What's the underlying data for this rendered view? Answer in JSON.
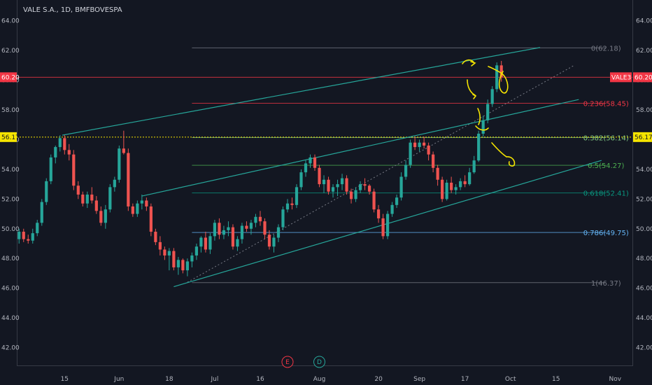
{
  "title": "VALE S.A., 1D, BMFBOVESPA",
  "chart_data": {
    "type": "candlestick",
    "title": "VALE S.A., 1D, BMFBOVESPA",
    "symbol_tag": "VALE3",
    "y_ticks": [
      42,
      44,
      46,
      48,
      50,
      52,
      54,
      56,
      58,
      60,
      62,
      64
    ],
    "y_tick_labels": [
      "42.00",
      "44.00",
      "46.00",
      "48.00",
      "50.00",
      "52.00",
      "54.00",
      "56.00",
      "58.00",
      "60.00",
      "62.00",
      "64.00"
    ],
    "ylim": [
      40.8,
      65.4
    ],
    "x_labels": [
      {
        "label": "15",
        "index": 10
      },
      {
        "label": "Jun",
        "index": 22
      },
      {
        "label": "18",
        "index": 33
      },
      {
        "label": "Jul",
        "index": 43
      },
      {
        "label": "16",
        "index": 53
      },
      {
        "label": "Aug",
        "index": 66
      },
      {
        "label": "20",
        "index": 79
      },
      {
        "label": "Sep",
        "index": 88
      },
      {
        "label": "17",
        "index": 98
      },
      {
        "label": "Oct",
        "index": 108
      },
      {
        "label": "15",
        "index": 118
      },
      {
        "label": "Nov",
        "index": 131
      }
    ],
    "xlim": [
      -0.5,
      134.8
    ],
    "last_price": "60.20",
    "crosshair_price": "56.17",
    "candles": [
      [
        49.3,
        50.0,
        49.0,
        49.8
      ],
      [
        49.8,
        50.0,
        49.1,
        49.3
      ],
      [
        49.3,
        49.6,
        49.0,
        49.2
      ],
      [
        49.2,
        50.0,
        49.0,
        49.7
      ],
      [
        49.7,
        50.6,
        49.5,
        50.4
      ],
      [
        50.4,
        52.0,
        50.2,
        51.8
      ],
      [
        51.8,
        53.4,
        51.6,
        53.2
      ],
      [
        53.2,
        55.0,
        53.0,
        54.8
      ],
      [
        54.8,
        55.6,
        54.4,
        55.5
      ],
      [
        55.5,
        56.3,
        55.2,
        56.1
      ],
      [
        56.1,
        56.3,
        55.0,
        55.3
      ],
      [
        55.3,
        55.7,
        54.6,
        55.0
      ],
      [
        55.0,
        55.3,
        52.6,
        52.9
      ],
      [
        52.9,
        53.2,
        52.0,
        52.3
      ],
      [
        52.3,
        52.5,
        51.5,
        51.7
      ],
      [
        51.7,
        52.5,
        51.4,
        52.3
      ],
      [
        52.3,
        52.8,
        51.7,
        51.9
      ],
      [
        51.9,
        52.2,
        51.0,
        51.2
      ],
      [
        51.2,
        51.5,
        50.2,
        50.4
      ],
      [
        50.4,
        51.6,
        50.0,
        51.3
      ],
      [
        51.3,
        53.0,
        51.1,
        52.8
      ],
      [
        52.8,
        53.5,
        52.5,
        53.3
      ],
      [
        53.3,
        55.6,
        53.1,
        55.4
      ],
      [
        55.4,
        56.6,
        55.0,
        55.1
      ],
      [
        55.1,
        55.4,
        51.2,
        51.5
      ],
      [
        51.5,
        51.7,
        50.8,
        51.0
      ],
      [
        51.0,
        51.9,
        50.8,
        51.7
      ],
      [
        51.7,
        52.3,
        51.3,
        51.9
      ],
      [
        51.9,
        52.1,
        51.2,
        51.5
      ],
      [
        51.5,
        51.7,
        49.5,
        49.8
      ],
      [
        49.8,
        50.0,
        48.9,
        49.1
      ],
      [
        49.1,
        49.5,
        48.2,
        48.6
      ],
      [
        48.6,
        48.8,
        47.9,
        48.2
      ],
      [
        48.2,
        48.7,
        47.2,
        48.5
      ],
      [
        48.5,
        48.7,
        47.2,
        47.4
      ],
      [
        47.4,
        48.1,
        46.9,
        47.9
      ],
      [
        47.9,
        48.0,
        47.0,
        47.2
      ],
      [
        47.2,
        48.0,
        46.8,
        47.8
      ],
      [
        47.8,
        48.4,
        47.4,
        48.2
      ],
      [
        48.2,
        49.0,
        47.9,
        48.8
      ],
      [
        48.8,
        49.5,
        48.4,
        49.4
      ],
      [
        49.4,
        49.8,
        48.4,
        48.6
      ],
      [
        48.6,
        49.7,
        48.3,
        49.5
      ],
      [
        49.5,
        50.6,
        49.2,
        50.4
      ],
      [
        50.4,
        50.7,
        49.3,
        49.6
      ],
      [
        49.6,
        50.2,
        49.3,
        49.9
      ],
      [
        49.9,
        50.5,
        49.5,
        50.1
      ],
      [
        50.1,
        50.3,
        48.6,
        48.8
      ],
      [
        48.8,
        49.5,
        48.5,
        49.3
      ],
      [
        49.3,
        50.4,
        49.0,
        50.2
      ],
      [
        50.2,
        50.5,
        49.8,
        50.0
      ],
      [
        50.0,
        50.6,
        49.6,
        50.4
      ],
      [
        50.4,
        51.0,
        50.1,
        50.8
      ],
      [
        50.8,
        51.2,
        50.2,
        50.5
      ],
      [
        50.5,
        50.7,
        49.3,
        49.6
      ],
      [
        49.6,
        49.9,
        48.6,
        48.8
      ],
      [
        48.8,
        49.6,
        48.4,
        49.4
      ],
      [
        49.4,
        50.3,
        49.1,
        50.1
      ],
      [
        50.1,
        51.5,
        49.9,
        51.3
      ],
      [
        51.3,
        52.0,
        51.1,
        51.7
      ],
      [
        51.7,
        52.1,
        51.3,
        51.6
      ],
      [
        51.6,
        53.0,
        51.4,
        52.8
      ],
      [
        52.8,
        54.0,
        52.6,
        53.8
      ],
      [
        53.8,
        54.6,
        53.5,
        54.4
      ],
      [
        54.4,
        55.0,
        54.1,
        54.8
      ],
      [
        54.8,
        55.0,
        53.9,
        54.1
      ],
      [
        54.1,
        54.3,
        52.8,
        53.0
      ],
      [
        53.0,
        53.6,
        52.4,
        53.3
      ],
      [
        53.3,
        53.5,
        52.3,
        52.5
      ],
      [
        52.5,
        53.0,
        52.1,
        52.8
      ],
      [
        52.8,
        53.3,
        52.2,
        53.0
      ],
      [
        53.0,
        53.7,
        52.6,
        53.4
      ],
      [
        53.4,
        53.6,
        52.3,
        52.5
      ],
      [
        52.5,
        52.7,
        51.7,
        52.0
      ],
      [
        52.0,
        52.8,
        51.8,
        52.6
      ],
      [
        52.6,
        53.2,
        52.4,
        53.0
      ],
      [
        53.0,
        53.4,
        52.6,
        52.9
      ],
      [
        52.9,
        53.0,
        52.3,
        52.5
      ],
      [
        52.5,
        52.7,
        51.1,
        51.3
      ],
      [
        51.3,
        51.6,
        50.4,
        50.7
      ],
      [
        50.7,
        51.0,
        49.3,
        49.5
      ],
      [
        49.5,
        51.2,
        49.3,
        51.0
      ],
      [
        51.0,
        51.8,
        50.8,
        51.6
      ],
      [
        51.6,
        52.3,
        51.4,
        52.1
      ],
      [
        52.1,
        53.8,
        51.9,
        53.5
      ],
      [
        53.5,
        54.6,
        53.3,
        54.3
      ],
      [
        54.3,
        56.0,
        54.1,
        55.8
      ],
      [
        55.8,
        56.2,
        55.3,
        55.5
      ],
      [
        55.5,
        56.0,
        55.2,
        55.8
      ],
      [
        55.8,
        56.2,
        55.4,
        55.6
      ],
      [
        55.6,
        55.8,
        54.6,
        55.0
      ],
      [
        55.0,
        55.2,
        53.8,
        54.1
      ],
      [
        54.1,
        54.3,
        52.9,
        53.3
      ],
      [
        53.3,
        53.5,
        51.8,
        52.0
      ],
      [
        52.0,
        53.3,
        51.9,
        53.1
      ],
      [
        53.1,
        53.5,
        52.4,
        52.6
      ],
      [
        52.6,
        53.0,
        52.3,
        52.8
      ],
      [
        52.8,
        53.4,
        52.6,
        53.2
      ],
      [
        53.2,
        53.6,
        52.8,
        53.0
      ],
      [
        53.0,
        54.1,
        52.9,
        53.8
      ],
      [
        53.8,
        54.9,
        53.7,
        54.6
      ],
      [
        54.6,
        56.6,
        54.5,
        56.4
      ],
      [
        56.4,
        57.6,
        56.2,
        57.3
      ],
      [
        57.3,
        58.7,
        57.1,
        58.4
      ],
      [
        58.4,
        59.6,
        58.2,
        59.4
      ],
      [
        59.4,
        61.2,
        59.2,
        61.0
      ],
      [
        61.0,
        61.3,
        59.9,
        60.2
      ]
    ],
    "fibonacci": [
      {
        "level": "0",
        "value": 62.18,
        "label": "0(62.18)",
        "color": "#787b86"
      },
      {
        "level": "0.236",
        "value": 58.45,
        "label": "0.236(58.45)",
        "color": "#f23645"
      },
      {
        "level": "0.382",
        "value": 56.14,
        "label": "0.382(56.14)",
        "color": "#81c784"
      },
      {
        "level": "0.5",
        "value": 54.27,
        "label": "0.5(54.27)",
        "color": "#4caf50"
      },
      {
        "level": "0.618",
        "value": 52.41,
        "label": "0.618(52.41)",
        "color": "#089981"
      },
      {
        "level": "0.786",
        "value": 49.75,
        "label": "0.786(49.75)",
        "color": "#64b5f6"
      },
      {
        "level": "1",
        "value": 46.37,
        "label": "1(46.37)",
        "color": "#787b86"
      }
    ],
    "fib_x_range": [
      38,
      129
    ],
    "channel_lines": [
      {
        "from": [
          9.5,
          56.3
        ],
        "to": [
          114.5,
          62.2
        ]
      },
      {
        "from": [
          27,
          52.2
        ],
        "to": [
          123,
          58.7
        ]
      },
      {
        "from": [
          34,
          46.1
        ],
        "to": [
          128,
          54.6
        ]
      }
    ],
    "dotted_line": {
      "from": [
        37,
        46.4
      ],
      "to": [
        122,
        61.0
      ]
    },
    "events": [
      {
        "label": "E",
        "index": 59,
        "color": "#f23645"
      },
      {
        "label": "D",
        "index": 66,
        "color": "#26a69a"
      }
    ],
    "grid": false,
    "colors": {
      "background": "#131722",
      "up": "#26a69a",
      "down": "#ef5350",
      "channel": "#26a69a",
      "last_price": "#f23645",
      "crosshair": "#f5e400",
      "annotation": "#f5e400",
      "axis_text": "#b2b5be"
    }
  }
}
